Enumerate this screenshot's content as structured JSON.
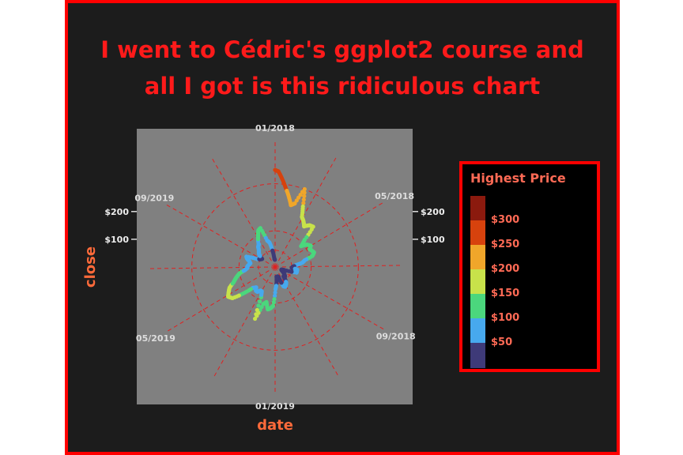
{
  "chart_data": {
    "type": "scatter",
    "coord": "polar",
    "title_lines": [
      "I went to Cédric's ggplot2 course and",
      "all I got is this ridiculous chart"
    ],
    "xlabel": "date",
    "ylabel": "close",
    "angle_ticks": [
      "01/2018",
      "05/2018",
      "09/2018",
      "01/2019",
      "05/2019",
      "09/2019"
    ],
    "radial_ticks": [
      {
        "value": 100,
        "label": "$100"
      },
      {
        "value": 200,
        "label": "$200"
      }
    ],
    "radial_range": [
      0,
      450
    ],
    "legend": {
      "title": "Highest Price",
      "levels": [
        {
          "label": "",
          "color": "#8b1a0e"
        },
        {
          "label": "$300",
          "color": "#d7420d"
        },
        {
          "label": "$250",
          "color": "#f0a62a"
        },
        {
          "label": "$200",
          "color": "#c8e24a"
        },
        {
          "label": "$150",
          "color": "#4bd77d"
        },
        {
          "label": "$100",
          "color": "#47a9ee"
        },
        {
          "label": "$50",
          "color": "#3e3a78"
        }
      ]
    },
    "series": [
      {
        "x": [
          "2018-01-01",
          "2018-01-05",
          "2018-01-10",
          "2018-01-16",
          "2018-01-23",
          "2018-01-30",
          "2018-02-05",
          "2018-02-12",
          "2018-02-20",
          "2018-02-27",
          "2018-03-06",
          "2018-03-14",
          "2018-03-22",
          "2018-03-30",
          "2018-04-07",
          "2018-04-15",
          "2018-04-22",
          "2018-05-01",
          "2018-05-08",
          "2018-05-15",
          "2018-05-22",
          "2018-05-30",
          "2018-06-06",
          "2018-06-14",
          "2018-06-22",
          "2018-06-30",
          "2018-07-08",
          "2018-07-16",
          "2018-07-24",
          "2018-08-01",
          "2018-08-08",
          "2018-08-15",
          "2018-08-22",
          "2018-08-30",
          "2018-09-06",
          "2018-09-14",
          "2018-09-22",
          "2018-09-30",
          "2018-10-08",
          "2018-10-15",
          "2018-10-22",
          "2018-10-30",
          "2018-11-07",
          "2018-11-15",
          "2018-11-22",
          "2018-11-30",
          "2018-12-08",
          "2018-12-15",
          "2018-12-22",
          "2018-12-30",
          "2019-01-07",
          "2019-01-14",
          "2019-01-21",
          "2019-01-29",
          "2019-02-06",
          "2019-02-13",
          "2019-02-20",
          "2019-02-28",
          "2019-03-07",
          "2019-03-14",
          "2019-03-21",
          "2019-03-29",
          "2019-04-06",
          "2019-04-13",
          "2019-04-20",
          "2019-04-28",
          "2019-05-06",
          "2019-05-14",
          "2019-05-22",
          "2019-05-29",
          "2019-06-05",
          "2019-06-12",
          "2019-06-20",
          "2019-06-28",
          "2019-07-05",
          "2019-07-12",
          "2019-07-20",
          "2019-07-28",
          "2019-08-05",
          "2019-08-12",
          "2019-08-20",
          "2019-08-28",
          "2019-09-05",
          "2019-09-12",
          "2019-09-20",
          "2019-09-28",
          "2019-10-05",
          "2019-10-12",
          "2019-10-20",
          "2019-10-28",
          "2019-11-05",
          "2019-11-12",
          "2019-11-20",
          "2019-11-28",
          "2019-12-06",
          "2019-12-14",
          "2019-12-22",
          "2019-12-30"
        ],
        "close": [
          350,
          345,
          320,
          290,
          260,
          230,
          240,
          300,
          240,
          205,
          195,
          180,
          195,
          200,
          145,
          120,
          140,
          150,
          140,
          145,
          150,
          140,
          110,
          100,
          75,
          65,
          60,
          80,
          80,
          80,
          35,
          25,
          25,
          30,
          35,
          40,
          45,
          50,
          45,
          60,
          70,
          75,
          80,
          75,
          40,
          35,
          40,
          35,
          60,
          80,
          140,
          150,
          155,
          130,
          140,
          200,
          120,
          100,
          100,
          110,
          110,
          100,
          110,
          150,
          190,
          200,
          190,
          180,
          160,
          150,
          140,
          130,
          110,
          100,
          100,
          95,
          90,
          95,
          105,
          110,
          70,
          60,
          55,
          65,
          75,
          80,
          85,
          95,
          100,
          115,
          130,
          145,
          150,
          100,
          90,
          60,
          30,
          25
        ],
        "high": [
          320,
          320,
          300,
          280,
          260,
          240,
          240,
          275,
          225,
          210,
          200,
          190,
          195,
          200,
          160,
          130,
          150,
          160,
          150,
          155,
          160,
          150,
          110,
          105,
          80,
          70,
          65,
          85,
          85,
          85,
          45,
          40,
          40,
          40,
          45,
          50,
          55,
          60,
          55,
          70,
          80,
          85,
          90,
          85,
          50,
          45,
          50,
          45,
          70,
          90,
          150,
          160,
          165,
          140,
          150,
          210,
          130,
          110,
          110,
          120,
          120,
          110,
          120,
          160,
          200,
          210,
          200,
          190,
          170,
          160,
          150,
          140,
          120,
          110,
          110,
          105,
          100,
          105,
          115,
          120,
          80,
          70,
          65,
          75,
          85,
          90,
          95,
          105,
          110,
          125,
          140,
          155,
          160,
          110,
          100,
          70,
          40,
          35
        ]
      }
    ]
  }
}
